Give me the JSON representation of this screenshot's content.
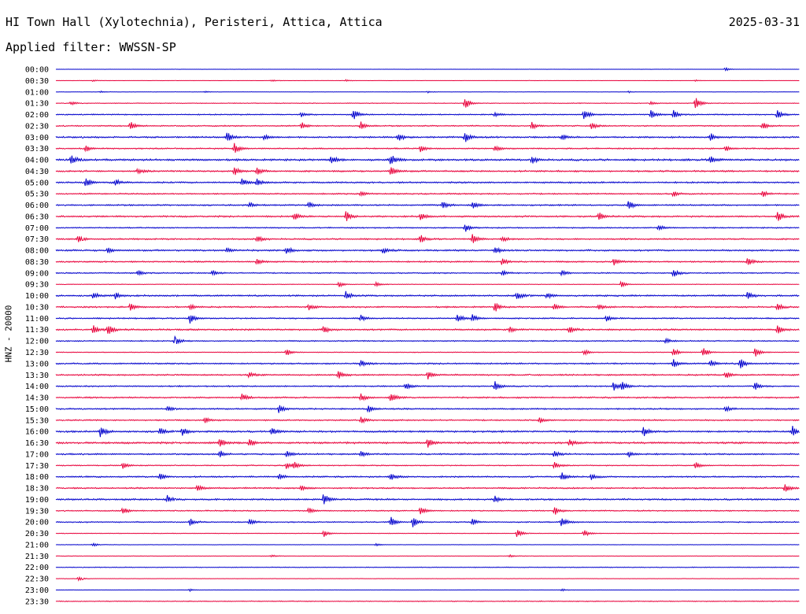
{
  "header": {
    "title": "HI Town Hall (Xylotechnia), Peristeri, Attica, Attica",
    "date": "2025-03-31",
    "filter": "Applied filter: WWSSN-SP"
  },
  "channel_label": "HNZ - 20000",
  "colors": {
    "blue": "#0000cc",
    "red": "#e8003a"
  },
  "chart_data": {
    "type": "line",
    "title": "HI Town Hall (Xylotechnia), Peristeri, Attica, Attica",
    "date": "2025-03-31",
    "ylabel": "HNZ - 20000",
    "grid": false,
    "row_colors": [
      "#0000cc",
      "#e8003a"
    ],
    "rows": [
      {
        "label": "00:00",
        "amplitude": 0.2,
        "events": [
          [
            0.9,
            0.6
          ]
        ]
      },
      {
        "label": "00:30",
        "amplitude": 0.2,
        "events": [
          [
            0.05,
            0.3
          ],
          [
            0.29,
            0.3
          ],
          [
            0.39,
            0.3
          ],
          [
            0.86,
            0.3
          ]
        ]
      },
      {
        "label": "01:00",
        "amplitude": 0.2,
        "events": [
          [
            0.06,
            0.3
          ],
          [
            0.2,
            0.3
          ],
          [
            0.5,
            0.3
          ],
          [
            0.77,
            0.3
          ]
        ]
      },
      {
        "label": "01:30",
        "amplitude": 0.5,
        "events": [
          [
            0.55,
            2.0
          ],
          [
            0.86,
            2.5
          ],
          [
            0.8,
            0.6
          ],
          [
            0.02,
            0.6
          ]
        ]
      },
      {
        "label": "02:00",
        "amplitude": 0.8,
        "events": [
          [
            0.33,
            0.8
          ],
          [
            0.4,
            2.0
          ],
          [
            0.59,
            0.8
          ],
          [
            0.71,
            1.8
          ],
          [
            0.8,
            1.5
          ],
          [
            0.83,
            1.5
          ],
          [
            0.97,
            1.8
          ]
        ]
      },
      {
        "label": "02:30",
        "amplitude": 0.8,
        "events": [
          [
            0.1,
            1.5
          ],
          [
            0.33,
            1.2
          ],
          [
            0.41,
            1.4
          ],
          [
            0.64,
            1.2
          ],
          [
            0.72,
            1.3
          ],
          [
            0.95,
            1.3
          ]
        ]
      },
      {
        "label": "03:00",
        "amplitude": 1.1,
        "events": [
          [
            0.23,
            1.8
          ],
          [
            0.28,
            1.0
          ],
          [
            0.46,
            1.5
          ],
          [
            0.55,
            1.8
          ],
          [
            0.68,
            0.9
          ],
          [
            0.88,
            1.2
          ]
        ]
      },
      {
        "label": "03:30",
        "amplitude": 0.9,
        "events": [
          [
            0.04,
            1.0
          ],
          [
            0.24,
            1.8
          ],
          [
            0.49,
            1.0
          ],
          [
            0.59,
            1.2
          ],
          [
            0.9,
            1.0
          ]
        ]
      },
      {
        "label": "04:00",
        "amplitude": 1.3,
        "events": [
          [
            0.02,
            2.0
          ],
          [
            0.37,
            1.5
          ],
          [
            0.45,
            2.0
          ],
          [
            0.64,
            1.2
          ],
          [
            0.88,
            1.2
          ]
        ]
      },
      {
        "label": "04:30",
        "amplitude": 1.1,
        "events": [
          [
            0.11,
            0.9
          ],
          [
            0.24,
            1.5
          ],
          [
            0.27,
            1.3
          ],
          [
            0.45,
            1.5
          ]
        ]
      },
      {
        "label": "05:00",
        "amplitude": 1.1,
        "events": [
          [
            0.04,
            1.8
          ],
          [
            0.08,
            1.0
          ],
          [
            0.25,
            1.3
          ],
          [
            0.27,
            1.3
          ]
        ]
      },
      {
        "label": "05:30",
        "amplitude": 0.9,
        "events": [
          [
            0.41,
            0.9
          ],
          [
            0.83,
            1.0
          ],
          [
            0.95,
            1.0
          ]
        ]
      },
      {
        "label": "06:00",
        "amplitude": 1.0,
        "events": [
          [
            0.26,
            1.0
          ],
          [
            0.34,
            1.0
          ],
          [
            0.52,
            1.2
          ],
          [
            0.56,
            1.2
          ],
          [
            0.77,
            1.4
          ]
        ]
      },
      {
        "label": "06:30",
        "amplitude": 1.1,
        "events": [
          [
            0.32,
            1.3
          ],
          [
            0.39,
            1.8
          ],
          [
            0.49,
            1.3
          ],
          [
            0.73,
            1.5
          ],
          [
            0.97,
            1.8
          ]
        ]
      },
      {
        "label": "07:00",
        "amplitude": 0.8,
        "events": [
          [
            0.55,
            1.5
          ],
          [
            0.81,
            1.0
          ]
        ]
      },
      {
        "label": "07:30",
        "amplitude": 1.0,
        "events": [
          [
            0.03,
            1.5
          ],
          [
            0.27,
            1.3
          ],
          [
            0.49,
            1.3
          ],
          [
            0.56,
            1.8
          ],
          [
            0.6,
            1.0
          ]
        ]
      },
      {
        "label": "08:00",
        "amplitude": 1.1,
        "events": [
          [
            0.07,
            1.0
          ],
          [
            0.23,
            1.0
          ],
          [
            0.31,
            1.3
          ],
          [
            0.44,
            1.0
          ],
          [
            0.59,
            1.3
          ]
        ]
      },
      {
        "label": "08:30",
        "amplitude": 1.0,
        "events": [
          [
            0.27,
            1.3
          ],
          [
            0.6,
            1.2
          ],
          [
            0.75,
            1.2
          ],
          [
            0.93,
            1.4
          ]
        ]
      },
      {
        "label": "09:00",
        "amplitude": 0.8,
        "events": [
          [
            0.11,
            1.0
          ],
          [
            0.21,
            1.0
          ],
          [
            0.6,
            1.0
          ],
          [
            0.68,
            1.0
          ],
          [
            0.83,
            1.5
          ]
        ]
      },
      {
        "label": "09:30",
        "amplitude": 0.4,
        "events": [
          [
            0.38,
            1.0
          ],
          [
            0.43,
            0.7
          ],
          [
            0.76,
            1.0
          ]
        ]
      },
      {
        "label": "10:00",
        "amplitude": 1.1,
        "events": [
          [
            0.05,
            1.3
          ],
          [
            0.08,
            1.0
          ],
          [
            0.39,
            1.3
          ],
          [
            0.62,
            1.5
          ],
          [
            0.66,
            1.0
          ],
          [
            0.93,
            1.3
          ]
        ]
      },
      {
        "label": "10:30",
        "amplitude": 1.0,
        "events": [
          [
            0.1,
            1.2
          ],
          [
            0.18,
            1.0
          ],
          [
            0.34,
            1.0
          ],
          [
            0.59,
            1.6
          ],
          [
            0.67,
            1.2
          ],
          [
            0.73,
            1.0
          ],
          [
            0.97,
            1.2
          ]
        ]
      },
      {
        "label": "11:00",
        "amplitude": 0.9,
        "events": [
          [
            0.18,
            1.6
          ],
          [
            0.41,
            1.0
          ],
          [
            0.54,
            1.5
          ],
          [
            0.56,
            1.2
          ],
          [
            0.74,
            1.0
          ]
        ]
      },
      {
        "label": "11:30",
        "amplitude": 1.1,
        "events": [
          [
            0.05,
            1.5
          ],
          [
            0.07,
            1.8
          ],
          [
            0.36,
            1.2
          ],
          [
            0.61,
            1.0
          ],
          [
            0.69,
            1.2
          ],
          [
            0.97,
            1.3
          ]
        ]
      },
      {
        "label": "12:00",
        "amplitude": 0.8,
        "events": [
          [
            0.16,
            1.6
          ],
          [
            0.82,
            0.8
          ]
        ]
      },
      {
        "label": "12:30",
        "amplitude": 0.5,
        "events": [
          [
            0.31,
            1.3
          ],
          [
            0.71,
            1.0
          ],
          [
            0.83,
            1.5
          ],
          [
            0.87,
            1.8
          ],
          [
            0.94,
            1.6
          ]
        ]
      },
      {
        "label": "13:00",
        "amplitude": 1.0,
        "events": [
          [
            0.41,
            1.3
          ],
          [
            0.83,
            1.4
          ],
          [
            0.88,
            1.2
          ],
          [
            0.92,
            2.0
          ]
        ]
      },
      {
        "label": "13:30",
        "amplitude": 1.0,
        "events": [
          [
            0.26,
            1.0
          ],
          [
            0.38,
            1.2
          ],
          [
            0.5,
            1.5
          ],
          [
            0.9,
            1.2
          ]
        ]
      },
      {
        "label": "14:00",
        "amplitude": 0.9,
        "events": [
          [
            0.47,
            1.2
          ],
          [
            0.59,
            1.8
          ],
          [
            0.75,
            1.5
          ],
          [
            0.76,
            1.5
          ],
          [
            0.94,
            1.5
          ]
        ]
      },
      {
        "label": "14:30",
        "amplitude": 1.0,
        "events": [
          [
            0.25,
            1.3
          ],
          [
            0.41,
            1.2
          ],
          [
            0.45,
            2.0
          ]
        ]
      },
      {
        "label": "15:00",
        "amplitude": 1.0,
        "events": [
          [
            0.15,
            1.0
          ],
          [
            0.3,
            1.3
          ],
          [
            0.42,
            1.3
          ],
          [
            0.9,
            1.0
          ]
        ]
      },
      {
        "label": "15:30",
        "amplitude": 0.9,
        "events": [
          [
            0.2,
            1.0
          ],
          [
            0.41,
            1.0
          ],
          [
            0.65,
            0.9
          ]
        ]
      },
      {
        "label": "16:00",
        "amplitude": 1.2,
        "events": [
          [
            0.06,
            1.8
          ],
          [
            0.14,
            1.3
          ],
          [
            0.17,
            1.3
          ],
          [
            0.29,
            1.3
          ],
          [
            0.79,
            1.6
          ],
          [
            0.99,
            1.8
          ]
        ]
      },
      {
        "label": "16:30",
        "amplitude": 1.3,
        "events": [
          [
            0.22,
            1.5
          ],
          [
            0.26,
            1.2
          ],
          [
            0.5,
            1.5
          ],
          [
            0.69,
            1.0
          ]
        ]
      },
      {
        "label": "17:00",
        "amplitude": 1.0,
        "events": [
          [
            0.22,
            1.3
          ],
          [
            0.31,
            1.0
          ],
          [
            0.41,
            1.0
          ],
          [
            0.67,
            1.2
          ],
          [
            0.77,
            1.0
          ]
        ]
      },
      {
        "label": "17:30",
        "amplitude": 0.7,
        "events": [
          [
            0.09,
            1.2
          ],
          [
            0.31,
            1.3
          ],
          [
            0.32,
            1.3
          ],
          [
            0.67,
            1.3
          ],
          [
            0.86,
            1.5
          ]
        ]
      },
      {
        "label": "18:00",
        "amplitude": 1.0,
        "events": [
          [
            0.14,
            1.3
          ],
          [
            0.3,
            1.0
          ],
          [
            0.45,
            1.2
          ],
          [
            0.68,
            1.8
          ],
          [
            0.72,
            1.0
          ]
        ]
      },
      {
        "label": "18:30",
        "amplitude": 1.0,
        "events": [
          [
            0.19,
            1.5
          ],
          [
            0.33,
            1.0
          ],
          [
            0.98,
            1.5
          ]
        ]
      },
      {
        "label": "19:00",
        "amplitude": 1.1,
        "events": [
          [
            0.15,
            1.3
          ],
          [
            0.36,
            2.0
          ],
          [
            0.59,
            1.2
          ]
        ]
      },
      {
        "label": "19:30",
        "amplitude": 0.8,
        "events": [
          [
            0.09,
            1.2
          ],
          [
            0.34,
            1.0
          ],
          [
            0.49,
            1.5
          ],
          [
            0.67,
            1.5
          ]
        ]
      },
      {
        "label": "20:00",
        "amplitude": 0.8,
        "events": [
          [
            0.18,
            1.2
          ],
          [
            0.26,
            1.2
          ],
          [
            0.45,
            1.8
          ],
          [
            0.48,
            1.8
          ],
          [
            0.56,
            1.0
          ],
          [
            0.68,
            2.0
          ]
        ]
      },
      {
        "label": "20:30",
        "amplitude": 0.4,
        "events": [
          [
            0.36,
            1.3
          ],
          [
            0.62,
            1.5
          ],
          [
            0.71,
            1.2
          ]
        ]
      },
      {
        "label": "21:00",
        "amplitude": 0.3,
        "events": [
          [
            0.05,
            0.5
          ],
          [
            0.43,
            0.5
          ]
        ]
      },
      {
        "label": "21:30",
        "amplitude": 0.3,
        "events": [
          [
            0.29,
            0.4
          ],
          [
            0.61,
            0.4
          ]
        ]
      },
      {
        "label": "22:00",
        "amplitude": 0.5,
        "events": []
      },
      {
        "label": "22:30",
        "amplitude": 0.3,
        "events": [
          [
            0.03,
            0.8
          ]
        ]
      },
      {
        "label": "23:00",
        "amplitude": 0.2,
        "events": [
          [
            0.18,
            0.4
          ],
          [
            0.68,
            0.4
          ]
        ]
      },
      {
        "label": "23:30",
        "amplitude": 0.6,
        "events": []
      }
    ]
  }
}
